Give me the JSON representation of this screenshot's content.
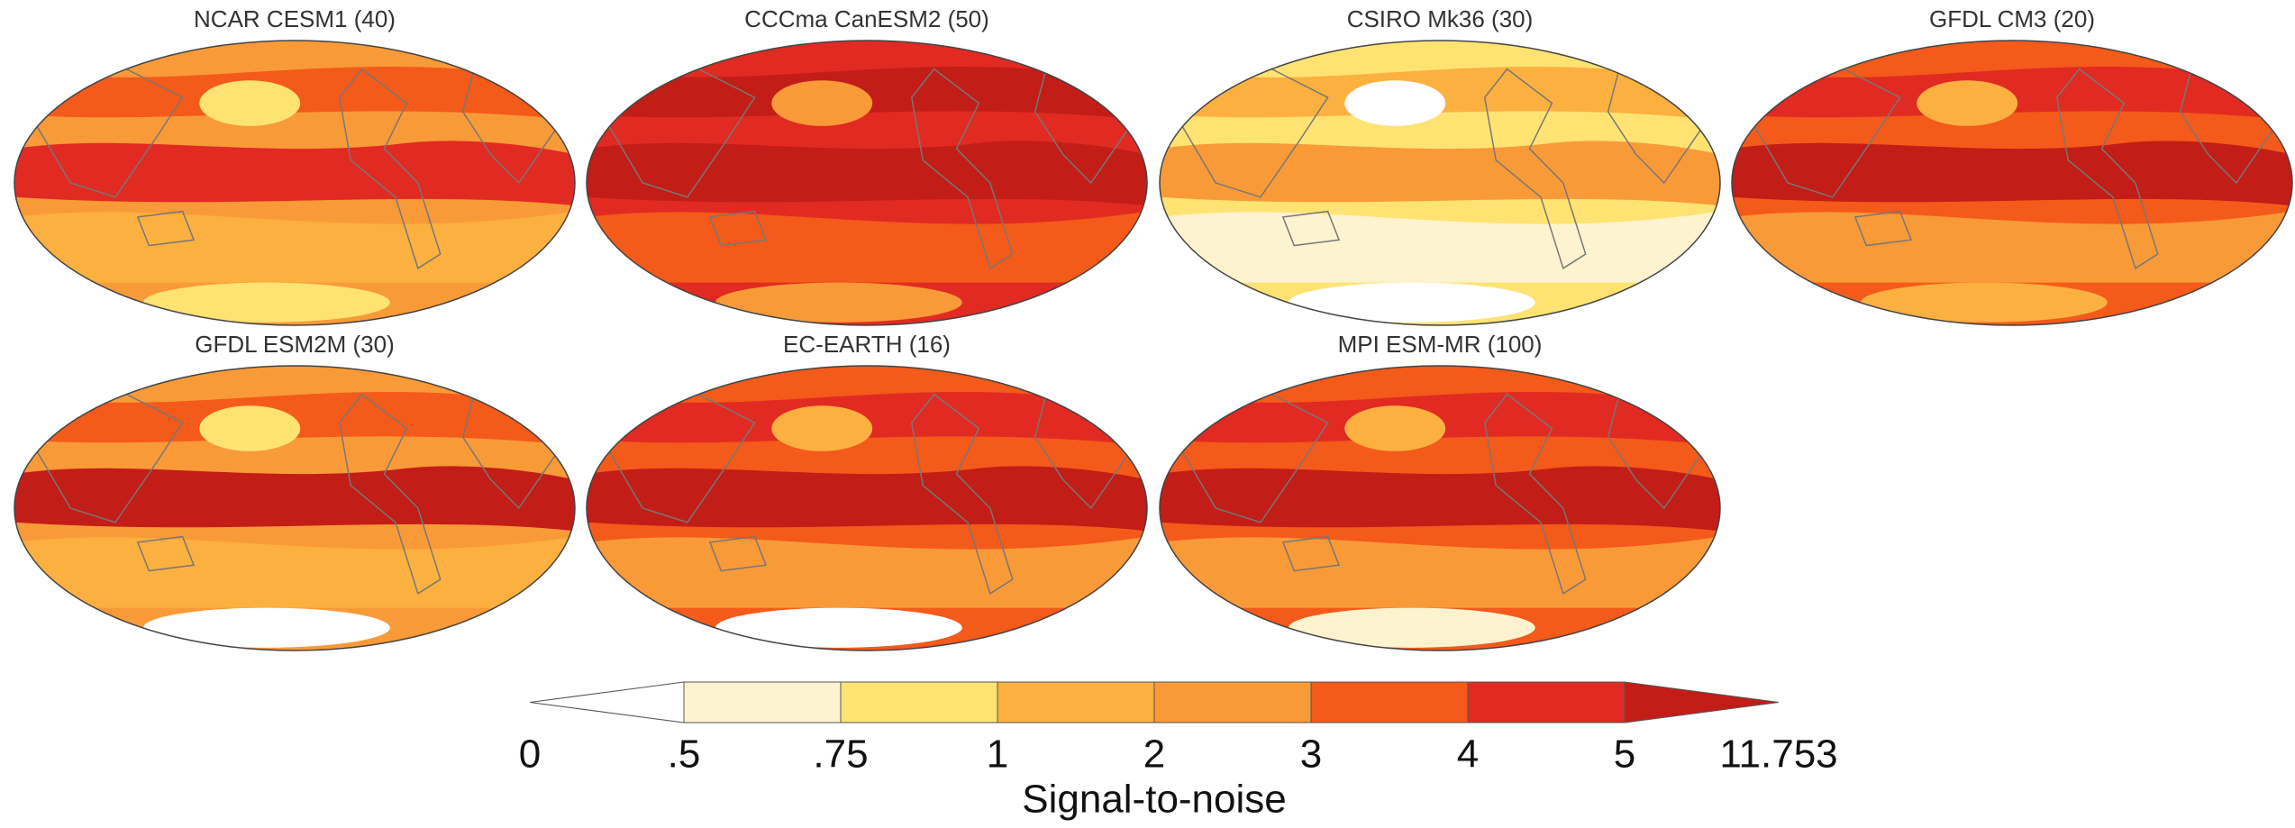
{
  "panels": [
    {
      "title": "NCAR CESM1 (40)"
    },
    {
      "title": "CCCma CanESM2 (50)"
    },
    {
      "title": "CSIRO Mk36 (30)"
    },
    {
      "title": "GFDL CM3 (20)"
    },
    {
      "title": "GFDL ESM2M (30)"
    },
    {
      "title": "EC-EARTH (16)"
    },
    {
      "title": "MPI ESM-MR (100)"
    }
  ],
  "colorbar": {
    "label": "Signal-to-noise",
    "tick_labels": [
      "0",
      ".5",
      ".75",
      "1",
      "2",
      "3",
      "4",
      "5",
      "11.753"
    ],
    "colors": [
      "#ffffff",
      "#fef3cf",
      "#fee373",
      "#fbb040",
      "#f99a38",
      "#f45a1a",
      "#e12a22",
      "#c21d17"
    ]
  }
}
